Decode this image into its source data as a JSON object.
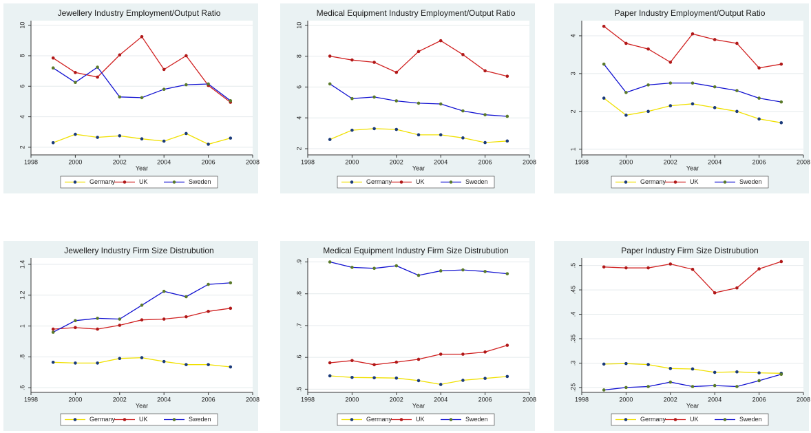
{
  "chart_data": [
    {
      "type": "line",
      "title": "Jewellery Industry Employment/Output Ratio",
      "xlabel": "Year",
      "x": [
        1999,
        2000,
        2001,
        2002,
        2003,
        2004,
        2005,
        2006,
        2007
      ],
      "xlim": [
        1998,
        2008
      ],
      "xticks": [
        1998,
        2000,
        2002,
        2004,
        2006,
        2008
      ],
      "ylim": [
        1.5,
        10.3
      ],
      "yticks": [
        2,
        4,
        6,
        8,
        10
      ],
      "grid": true,
      "legend": "bottom",
      "series": [
        {
          "name": "Germany",
          "color": "#f0e000",
          "marker_color": "#1a3a7a",
          "values": [
            2.3,
            2.85,
            2.65,
            2.75,
            2.55,
            2.4,
            2.9,
            2.2,
            2.6
          ]
        },
        {
          "name": "UK",
          "color": "#d02020",
          "marker_color": "#b01818",
          "values": [
            7.85,
            6.9,
            6.6,
            8.05,
            9.25,
            7.1,
            8.0,
            6.05,
            4.95
          ]
        },
        {
          "name": "Sweden",
          "color": "#1010d0",
          "marker_color": "#5a7a2a",
          "values": [
            7.2,
            6.25,
            7.25,
            5.3,
            5.25,
            5.8,
            6.1,
            6.15,
            5.05
          ]
        }
      ]
    },
    {
      "type": "line",
      "title": "Medical Equipment Industry Employment/Output Ratio",
      "xlabel": "Year",
      "x": [
        1999,
        2000,
        2001,
        2002,
        2003,
        2004,
        2005,
        2006,
        2007
      ],
      "xlim": [
        1998,
        2008
      ],
      "xticks": [
        1998,
        2000,
        2002,
        2004,
        2006,
        2008
      ],
      "ylim": [
        1.6,
        10.3
      ],
      "yticks": [
        2,
        4,
        6,
        8,
        10
      ],
      "grid": true,
      "legend": "bottom",
      "series": [
        {
          "name": "Germany",
          "color": "#f0e000",
          "marker_color": "#1a3a7a",
          "values": [
            2.6,
            3.2,
            3.3,
            3.25,
            2.9,
            2.9,
            2.7,
            2.4,
            2.5
          ]
        },
        {
          "name": "UK",
          "color": "#d02020",
          "marker_color": "#b01818",
          "values": [
            8.0,
            7.75,
            7.6,
            6.95,
            8.3,
            9.0,
            8.1,
            7.05,
            6.7
          ]
        },
        {
          "name": "Sweden",
          "color": "#1010d0",
          "marker_color": "#5a7a2a",
          "values": [
            6.2,
            5.25,
            5.35,
            5.1,
            4.95,
            4.9,
            4.45,
            4.2,
            4.1
          ]
        }
      ]
    },
    {
      "type": "line",
      "title": "Paper Industry Employment/Output Ratio",
      "xlabel": "Year",
      "x": [
        1999,
        2000,
        2001,
        2002,
        2003,
        2004,
        2005,
        2006,
        2007
      ],
      "xlim": [
        1998,
        2008
      ],
      "xticks": [
        1998,
        2000,
        2002,
        2004,
        2006,
        2008
      ],
      "ylim": [
        0.85,
        4.4
      ],
      "yticks": [
        1,
        2,
        3,
        4
      ],
      "grid": true,
      "legend": "bottom",
      "series": [
        {
          "name": "Germany",
          "color": "#f0e000",
          "marker_color": "#1a3a7a",
          "values": [
            2.35,
            1.9,
            2.0,
            2.15,
            2.2,
            2.1,
            2.0,
            1.8,
            1.7
          ]
        },
        {
          "name": "UK",
          "color": "#d02020",
          "marker_color": "#b01818",
          "values": [
            4.25,
            3.8,
            3.65,
            3.3,
            4.05,
            3.9,
            3.8,
            3.15,
            3.25
          ]
        },
        {
          "name": "Sweden",
          "color": "#1010d0",
          "marker_color": "#5a7a2a",
          "values": [
            3.25,
            2.5,
            2.7,
            2.75,
            2.75,
            2.65,
            2.55,
            2.35,
            2.25
          ]
        }
      ]
    },
    {
      "type": "line",
      "title": "Jewellery Industry Firm Size Distrubution",
      "xlabel": "Year",
      "x": [
        1999,
        2000,
        2001,
        2002,
        2003,
        2004,
        2005,
        2006,
        2007
      ],
      "xlim": [
        1998,
        2008
      ],
      "xticks": [
        1998,
        2000,
        2002,
        2004,
        2006,
        2008
      ],
      "ylim": [
        0.57,
        1.44
      ],
      "yticks": [
        {
          "value": 0.6,
          "label": ".6"
        },
        {
          "value": 0.8,
          "label": ".8"
        },
        1,
        1.2,
        1.4
      ],
      "grid": true,
      "legend": "bottom",
      "series": [
        {
          "name": "Germany",
          "color": "#f0e000",
          "marker_color": "#1a3a7a",
          "values": [
            0.765,
            0.76,
            0.76,
            0.79,
            0.795,
            0.77,
            0.75,
            0.75,
            0.735
          ]
        },
        {
          "name": "UK",
          "color": "#d02020",
          "marker_color": "#b01818",
          "values": [
            0.98,
            0.99,
            0.98,
            1.005,
            1.04,
            1.045,
            1.06,
            1.095,
            1.115
          ]
        },
        {
          "name": "Sweden",
          "color": "#1010d0",
          "marker_color": "#5a7a2a",
          "values": [
            0.96,
            1.035,
            1.05,
            1.045,
            1.135,
            1.225,
            1.19,
            1.27,
            1.28
          ]
        }
      ]
    },
    {
      "type": "line",
      "title": "Medical Equipment Industry Firm Size Distrubution",
      "xlabel": "Year",
      "x": [
        1999,
        2000,
        2001,
        2002,
        2003,
        2004,
        2005,
        2006,
        2007
      ],
      "xlim": [
        1998,
        2008
      ],
      "xticks": [
        1998,
        2000,
        2002,
        2004,
        2006,
        2008
      ],
      "ylim": [
        0.49,
        0.912
      ],
      "yticks": [
        {
          "value": 0.5,
          "label": ".5"
        },
        {
          "value": 0.6,
          "label": ".6"
        },
        {
          "value": 0.7,
          "label": ".7"
        },
        {
          "value": 0.8,
          "label": ".8"
        },
        {
          "value": 0.9,
          "label": ".9"
        }
      ],
      "grid": true,
      "legend": "bottom",
      "series": [
        {
          "name": "Germany",
          "color": "#f0e000",
          "marker_color": "#1a3a7a",
          "values": [
            0.542,
            0.537,
            0.536,
            0.535,
            0.527,
            0.515,
            0.528,
            0.534,
            0.54
          ]
        },
        {
          "name": "UK",
          "color": "#d02020",
          "marker_color": "#b01818",
          "values": [
            0.583,
            0.59,
            0.577,
            0.585,
            0.594,
            0.61,
            0.61,
            0.617,
            0.638
          ]
        },
        {
          "name": "Sweden",
          "color": "#1010d0",
          "marker_color": "#5a7a2a",
          "values": [
            0.9,
            0.883,
            0.88,
            0.888,
            0.858,
            0.872,
            0.875,
            0.87,
            0.863
          ]
        }
      ]
    },
    {
      "type": "line",
      "title": "Paper Industry Firm Size Distrubution",
      "xlabel": "Year",
      "x": [
        1999,
        2000,
        2001,
        2002,
        2003,
        2004,
        2005,
        2006,
        2007
      ],
      "xlim": [
        1998,
        2008
      ],
      "xticks": [
        1998,
        2000,
        2002,
        2004,
        2006,
        2008
      ],
      "ylim": [
        0.24,
        0.515
      ],
      "yticks": [
        {
          "value": 0.25,
          "label": ".25"
        },
        {
          "value": 0.3,
          "label": ".3"
        },
        {
          "value": 0.35,
          "label": ".35"
        },
        {
          "value": 0.4,
          "label": ".4"
        },
        {
          "value": 0.45,
          "label": ".45"
        },
        {
          "value": 0.5,
          "label": ".5"
        }
      ],
      "grid": true,
      "legend": "bottom",
      "series": [
        {
          "name": "Germany",
          "color": "#f0e000",
          "marker_color": "#1a3a7a",
          "values": [
            0.298,
            0.299,
            0.297,
            0.289,
            0.288,
            0.281,
            0.282,
            0.28,
            0.279
          ]
        },
        {
          "name": "UK",
          "color": "#d02020",
          "marker_color": "#b01818",
          "values": [
            0.497,
            0.495,
            0.495,
            0.503,
            0.492,
            0.444,
            0.454,
            0.493,
            0.508
          ]
        },
        {
          "name": "Sweden",
          "color": "#1010d0",
          "marker_color": "#5a7a2a",
          "values": [
            0.245,
            0.25,
            0.252,
            0.261,
            0.252,
            0.254,
            0.252,
            0.264,
            0.277
          ]
        }
      ]
    }
  ]
}
